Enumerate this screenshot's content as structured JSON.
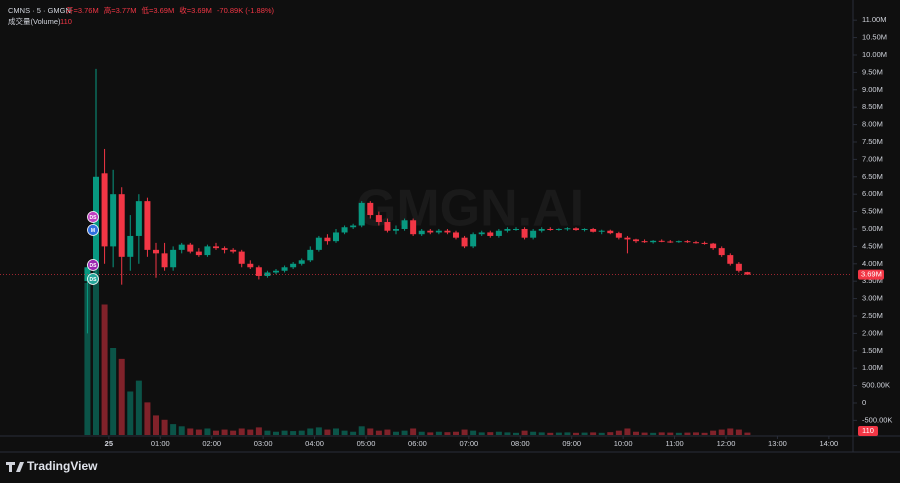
{
  "chart_data": {
    "type": "candlestick",
    "symbol": "CMNS · 5 · GMGN",
    "ohlc_legend": [
      "开=3.76M",
      "高=3.77M",
      "低=3.69M",
      "收=3.69M",
      "-70.89K (-1.88%)"
    ],
    "volume_title": "成交量(Volume)",
    "volume_last": "110",
    "watermark": "GMGN.AI",
    "brand": "TradingView",
    "markers": [
      "DS",
      "M",
      "DS",
      "DS"
    ],
    "up_color": "#089981",
    "down_color": "#f23645",
    "last_price": 3.69,
    "last_price_label": "3.69M",
    "x": [
      -25,
      -15,
      -5,
      5,
      15,
      25,
      35,
      45,
      55,
      65,
      75,
      85,
      95,
      105,
      115,
      125,
      135,
      145,
      155,
      165,
      175,
      185,
      195,
      205,
      215,
      225,
      235,
      245,
      255,
      265,
      275,
      285,
      295,
      305,
      315,
      325,
      335,
      345,
      355,
      365,
      375,
      385,
      395,
      405,
      415,
      425,
      435,
      445,
      455,
      465,
      475,
      485,
      495,
      505,
      515,
      525,
      535,
      545,
      555,
      565,
      575,
      585,
      595,
      605,
      615,
      625,
      635,
      645,
      655,
      665,
      675,
      685,
      695,
      705,
      715,
      725,
      735,
      745
    ],
    "open": [
      3.5,
      3.9,
      6.6,
      4.5,
      6.0,
      4.2,
      4.8,
      5.8,
      4.4,
      4.3,
      3.9,
      4.4,
      4.55,
      4.35,
      4.25,
      4.5,
      4.45,
      4.4,
      4.35,
      4.0,
      3.9,
      3.65,
      3.75,
      3.8,
      3.9,
      4.0,
      4.1,
      4.4,
      4.75,
      4.65,
      4.9,
      5.05,
      5.1,
      5.75,
      5.4,
      5.2,
      4.95,
      5.0,
      5.25,
      4.85,
      4.95,
      4.9,
      4.95,
      4.9,
      4.75,
      4.5,
      4.85,
      4.9,
      4.8,
      4.95,
      5.0,
      5.0,
      4.75,
      4.95,
      5.0,
      4.98,
      5.0,
      5.02,
      4.97,
      5.0,
      4.92,
      4.95,
      4.88,
      4.75,
      4.7,
      4.65,
      4.62,
      4.66,
      4.64,
      4.63,
      4.65,
      4.62,
      4.6,
      4.58,
      4.45,
      4.25,
      4.0,
      3.76
    ],
    "high": [
      4.0,
      9.6,
      7.3,
      6.7,
      6.2,
      5.4,
      6.0,
      5.9,
      4.6,
      4.6,
      4.5,
      4.6,
      4.6,
      4.45,
      4.55,
      4.6,
      4.5,
      4.45,
      4.4,
      4.1,
      3.95,
      3.8,
      3.85,
      3.95,
      4.05,
      4.15,
      4.5,
      4.8,
      4.85,
      5.0,
      5.1,
      5.15,
      5.8,
      5.8,
      5.5,
      5.3,
      5.1,
      5.3,
      5.3,
      5.0,
      5.0,
      5.0,
      5.0,
      4.95,
      4.8,
      4.9,
      4.95,
      4.95,
      5.0,
      5.05,
      5.05,
      5.05,
      5.0,
      5.05,
      5.05,
      5.02,
      5.05,
      5.05,
      5.02,
      5.03,
      4.98,
      4.98,
      4.92,
      4.8,
      4.72,
      4.7,
      4.68,
      4.7,
      4.68,
      4.67,
      4.68,
      4.66,
      4.64,
      4.6,
      4.5,
      4.3,
      4.05,
      3.77
    ],
    "low": [
      2.0,
      3.5,
      4.0,
      3.9,
      3.4,
      3.8,
      4.0,
      4.2,
      3.6,
      3.8,
      3.8,
      4.3,
      4.3,
      4.2,
      4.2,
      4.4,
      4.3,
      4.3,
      3.9,
      3.85,
      3.55,
      3.6,
      3.7,
      3.75,
      3.85,
      3.95,
      4.05,
      4.35,
      4.55,
      4.6,
      4.85,
      5.0,
      5.05,
      5.3,
      5.1,
      4.9,
      4.85,
      4.95,
      4.8,
      4.8,
      4.85,
      4.85,
      4.85,
      4.7,
      4.45,
      4.45,
      4.8,
      4.75,
      4.75,
      4.9,
      4.95,
      4.7,
      4.7,
      4.9,
      4.95,
      4.95,
      4.95,
      4.95,
      4.93,
      4.9,
      4.85,
      4.85,
      4.7,
      4.3,
      4.6,
      4.6,
      4.58,
      4.62,
      4.6,
      4.6,
      4.6,
      4.58,
      4.55,
      4.4,
      4.2,
      3.95,
      3.75,
      3.69
    ],
    "close": [
      3.9,
      6.5,
      4.5,
      6.0,
      4.2,
      4.8,
      5.8,
      4.4,
      4.3,
      3.9,
      4.4,
      4.55,
      4.35,
      4.25,
      4.5,
      4.45,
      4.4,
      4.35,
      4.0,
      3.9,
      3.65,
      3.75,
      3.8,
      3.9,
      4.0,
      4.1,
      4.4,
      4.75,
      4.65,
      4.9,
      5.05,
      5.1,
      5.75,
      5.4,
      5.2,
      4.95,
      5.0,
      5.25,
      4.85,
      4.95,
      4.9,
      4.95,
      4.9,
      4.75,
      4.5,
      4.85,
      4.9,
      4.8,
      4.95,
      5.0,
      5.0,
      4.75,
      4.95,
      5.0,
      4.98,
      5.0,
      5.02,
      4.97,
      5.0,
      4.92,
      4.95,
      4.88,
      4.75,
      4.7,
      4.65,
      4.62,
      4.66,
      4.64,
      4.63,
      4.65,
      4.62,
      4.6,
      4.58,
      4.45,
      4.25,
      4.0,
      3.8,
      3.69
    ],
    "volume": [
      7000,
      9800,
      6000,
      4000,
      3500,
      2000,
      2500,
      1500,
      900,
      700,
      500,
      400,
      300,
      250,
      300,
      200,
      250,
      200,
      300,
      250,
      350,
      200,
      150,
      200,
      180,
      200,
      300,
      350,
      250,
      300,
      200,
      150,
      400,
      300,
      200,
      250,
      150,
      200,
      300,
      150,
      120,
      150,
      130,
      150,
      250,
      200,
      120,
      130,
      150,
      120,
      100,
      200,
      150,
      120,
      100,
      110,
      120,
      100,
      110,
      120,
      100,
      130,
      200,
      300,
      150,
      110,
      100,
      120,
      110,
      100,
      110,
      120,
      100,
      200,
      250,
      300,
      250,
      110
    ],
    "y2lim": [
      0,
      20000
    ],
    "xlim": [
      -127,
      867
    ],
    "xticks": [
      {
        "value": 0,
        "label": "25"
      },
      {
        "value": 60,
        "label": "01:00"
      },
      {
        "value": 120,
        "label": "02:00"
      },
      {
        "value": 180,
        "label": "03:00"
      },
      {
        "value": 240,
        "label": "04:00"
      },
      {
        "value": 300,
        "label": "05:00"
      },
      {
        "value": 360,
        "label": "06:00"
      },
      {
        "value": 420,
        "label": "07:00"
      },
      {
        "value": 480,
        "label": "08:00"
      },
      {
        "value": 540,
        "label": "09:00"
      },
      {
        "value": 600,
        "label": "10:00"
      },
      {
        "value": 660,
        "label": "11:00"
      },
      {
        "value": 720,
        "label": "12:00"
      },
      {
        "value": 780,
        "label": "13:00"
      },
      {
        "value": 840,
        "label": "14:00"
      }
    ],
    "ylim": [
      -0.92,
      11.58
    ],
    "yticks": [
      {
        "value": 11,
        "label": "11.00M"
      },
      {
        "value": 10.5,
        "label": "10.50M"
      },
      {
        "value": 10,
        "label": "10.00M"
      },
      {
        "value": 9.5,
        "label": "9.50M"
      },
      {
        "value": 9,
        "label": "9.00M"
      },
      {
        "value": 8.5,
        "label": "8.50M"
      },
      {
        "value": 8,
        "label": "8.00M"
      },
      {
        "value": 7.5,
        "label": "7.50M"
      },
      {
        "value": 7,
        "label": "7.00M"
      },
      {
        "value": 6.5,
        "label": "6.50M"
      },
      {
        "value": 6,
        "label": "6.00M"
      },
      {
        "value": 5.5,
        "label": "5.50M"
      },
      {
        "value": 5,
        "label": "5.00M"
      },
      {
        "value": 4.5,
        "label": "4.50M"
      },
      {
        "value": 4,
        "label": "4.00M"
      },
      {
        "value": 3.5,
        "label": "3.50M"
      },
      {
        "value": 3,
        "label": "3.00M"
      },
      {
        "value": 2.5,
        "label": "2.50M"
      },
      {
        "value": 2,
        "label": "2.00M"
      },
      {
        "value": 1.5,
        "label": "1.50M"
      },
      {
        "value": 1,
        "label": "1.00M"
      },
      {
        "value": 0.5,
        "label": "500.00K"
      },
      0,
      {
        "value": -0.5,
        "label": "-500.00K"
      }
    ]
  }
}
